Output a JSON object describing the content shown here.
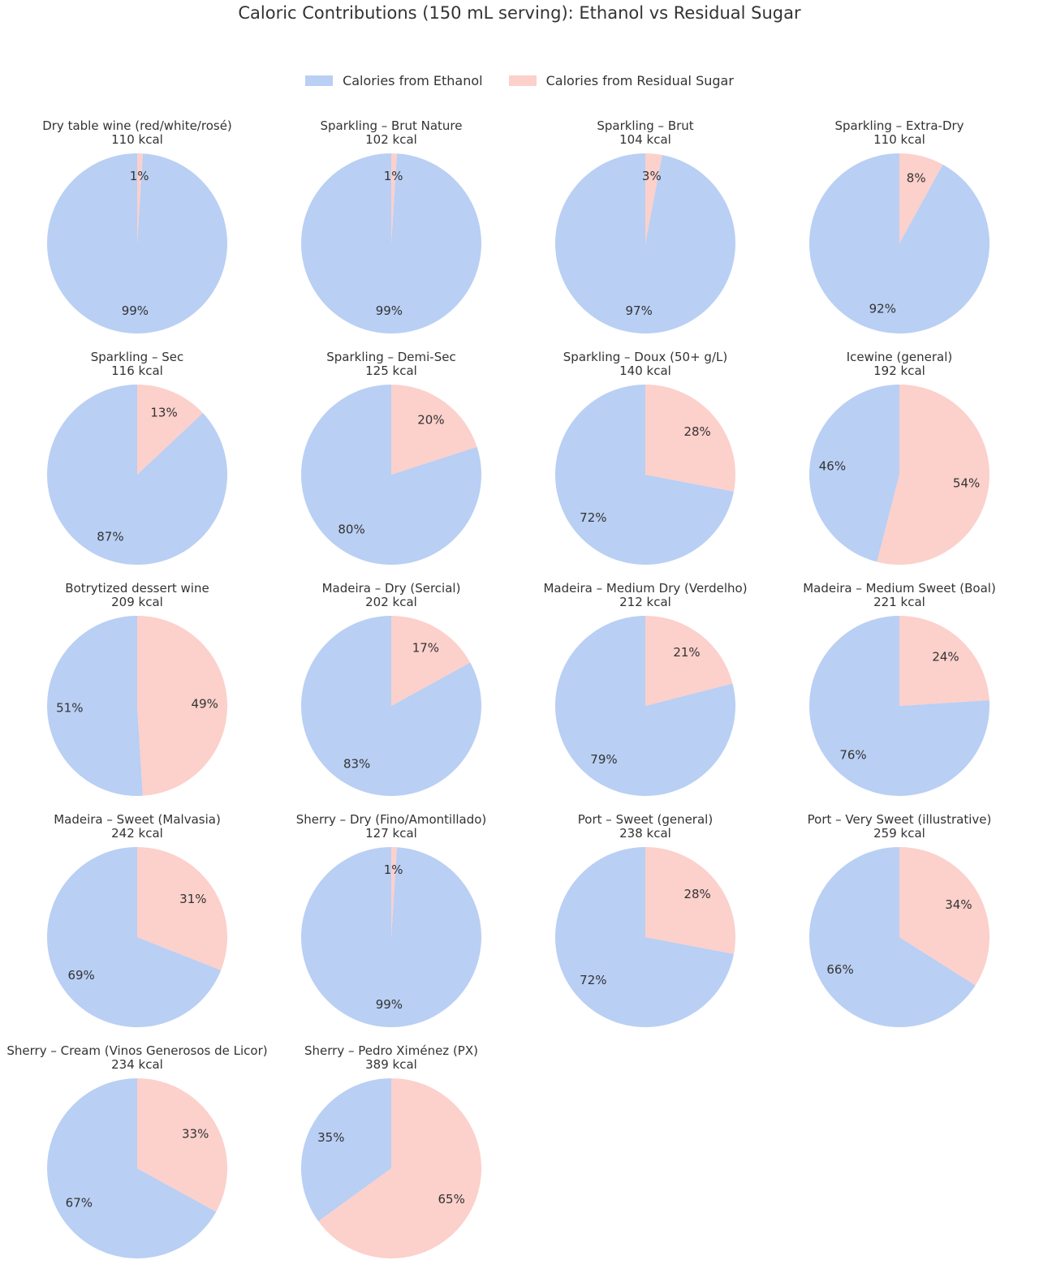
{
  "chart_data": {
    "type": "pie",
    "title": "Caloric Contributions (150 mL serving): Ethanol vs Residual Sugar",
    "legend_position": "top-center",
    "series_labels": [
      "Calories from Ethanol",
      "Calories from Residual Sugar"
    ],
    "colors": [
      "#b9cff4",
      "#fcd0cb"
    ],
    "pies": [
      {
        "name": "Dry table wine (red/white/rosé)",
        "kcal": "110 kcal",
        "ethanol_pct": 99,
        "sugar_pct": 1
      },
      {
        "name": "Sparkling – Brut Nature",
        "kcal": "102 kcal",
        "ethanol_pct": 99,
        "sugar_pct": 1
      },
      {
        "name": "Sparkling – Brut",
        "kcal": "104 kcal",
        "ethanol_pct": 97,
        "sugar_pct": 3
      },
      {
        "name": "Sparkling – Extra-Dry",
        "kcal": "110 kcal",
        "ethanol_pct": 92,
        "sugar_pct": 8
      },
      {
        "name": "Sparkling – Sec",
        "kcal": "116 kcal",
        "ethanol_pct": 87,
        "sugar_pct": 13
      },
      {
        "name": "Sparkling – Demi-Sec",
        "kcal": "125 kcal",
        "ethanol_pct": 80,
        "sugar_pct": 20
      },
      {
        "name": "Sparkling – Doux (50+ g/L)",
        "kcal": "140 kcal",
        "ethanol_pct": 72,
        "sugar_pct": 28
      },
      {
        "name": "Icewine (general)",
        "kcal": "192 kcal",
        "ethanol_pct": 46,
        "sugar_pct": 54
      },
      {
        "name": "Botrytized dessert wine",
        "kcal": "209 kcal",
        "ethanol_pct": 51,
        "sugar_pct": 49
      },
      {
        "name": "Madeira – Dry (Sercial)",
        "kcal": "202 kcal",
        "ethanol_pct": 83,
        "sugar_pct": 17
      },
      {
        "name": "Madeira – Medium Dry (Verdelho)",
        "kcal": "212 kcal",
        "ethanol_pct": 79,
        "sugar_pct": 21
      },
      {
        "name": "Madeira – Medium Sweet (Boal)",
        "kcal": "221 kcal",
        "ethanol_pct": 76,
        "sugar_pct": 24
      },
      {
        "name": "Madeira – Sweet (Malvasia)",
        "kcal": "242 kcal",
        "ethanol_pct": 69,
        "sugar_pct": 31
      },
      {
        "name": "Sherry – Dry (Fino/Amontillado)",
        "kcal": "127 kcal",
        "ethanol_pct": 99,
        "sugar_pct": 1
      },
      {
        "name": "Port – Sweet (general)",
        "kcal": "238 kcal",
        "ethanol_pct": 72,
        "sugar_pct": 28
      },
      {
        "name": "Port – Very Sweet (illustrative)",
        "kcal": "259 kcal",
        "ethanol_pct": 66,
        "sugar_pct": 34
      },
      {
        "name": "Sherry – Cream (Vinos Generosos de Licor)",
        "kcal": "234 kcal",
        "ethanol_pct": 67,
        "sugar_pct": 33
      },
      {
        "name": "Sherry – Pedro Ximénez (PX)",
        "kcal": "389 kcal",
        "ethanol_pct": 35,
        "sugar_pct": 65
      }
    ]
  }
}
